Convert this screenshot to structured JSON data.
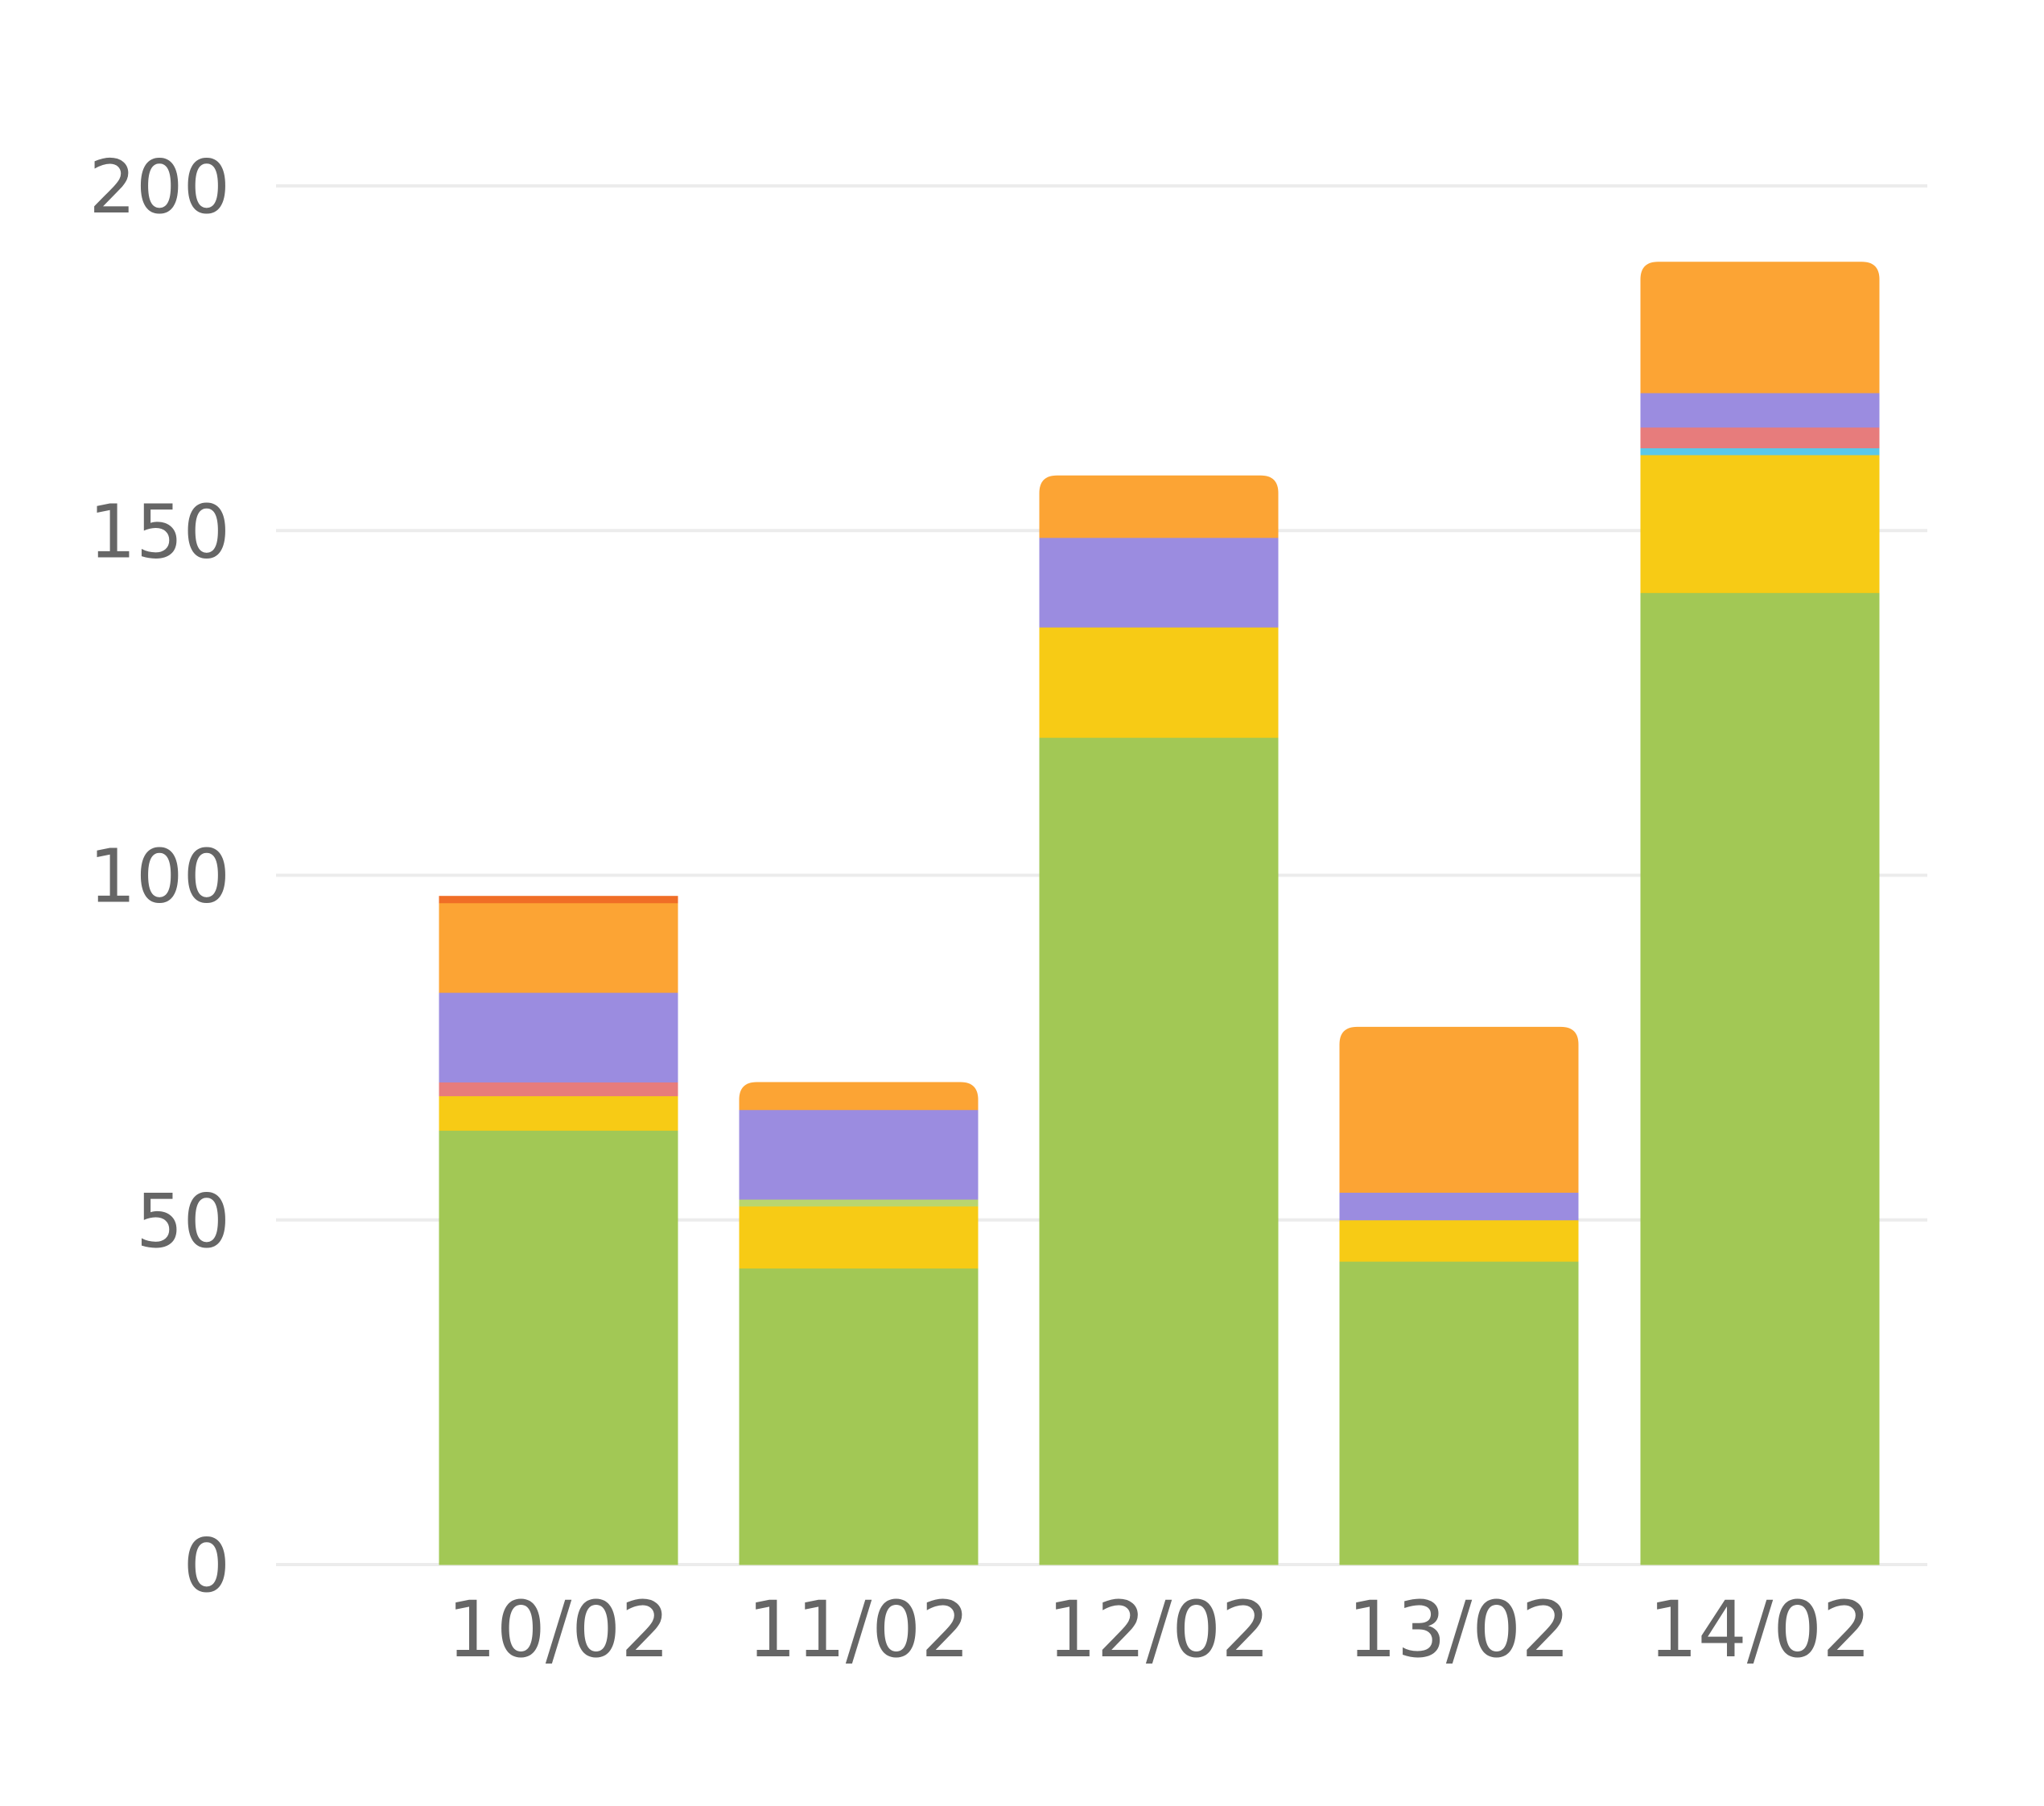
{
  "chart_data": {
    "type": "bar",
    "stacked": true,
    "title": "",
    "xlabel": "",
    "ylabel": "",
    "categories": [
      "10/02",
      "11/02",
      "12/02",
      "13/02",
      "14/02"
    ],
    "ylim": [
      0,
      200
    ],
    "yticks": [
      "0",
      "50",
      "100",
      "150",
      "200"
    ],
    "grid": "horizontal",
    "legend": "none",
    "series": [
      {
        "color": "#a2c855",
        "values": [
          63,
          43,
          120,
          44,
          141
        ]
      },
      {
        "color": "#f7cb15",
        "values": [
          5,
          9,
          16,
          6,
          20
        ]
      },
      {
        "color": "#5bc8e8",
        "values": [
          0,
          0,
          0,
          0,
          1
        ]
      },
      {
        "color": "#e77c7c",
        "values": [
          2,
          0,
          0,
          0,
          3
        ]
      },
      {
        "color": "#b9d56e",
        "values": [
          0,
          1,
          0,
          0,
          0
        ]
      },
      {
        "color": "#9b8ce0",
        "values": [
          13,
          13,
          13,
          4,
          5
        ]
      },
      {
        "color": "#fca434",
        "values": [
          13,
          4,
          9,
          24,
          19
        ]
      },
      {
        "color": "#f06e26",
        "values": [
          1,
          0,
          0,
          0,
          0
        ]
      }
    ]
  }
}
